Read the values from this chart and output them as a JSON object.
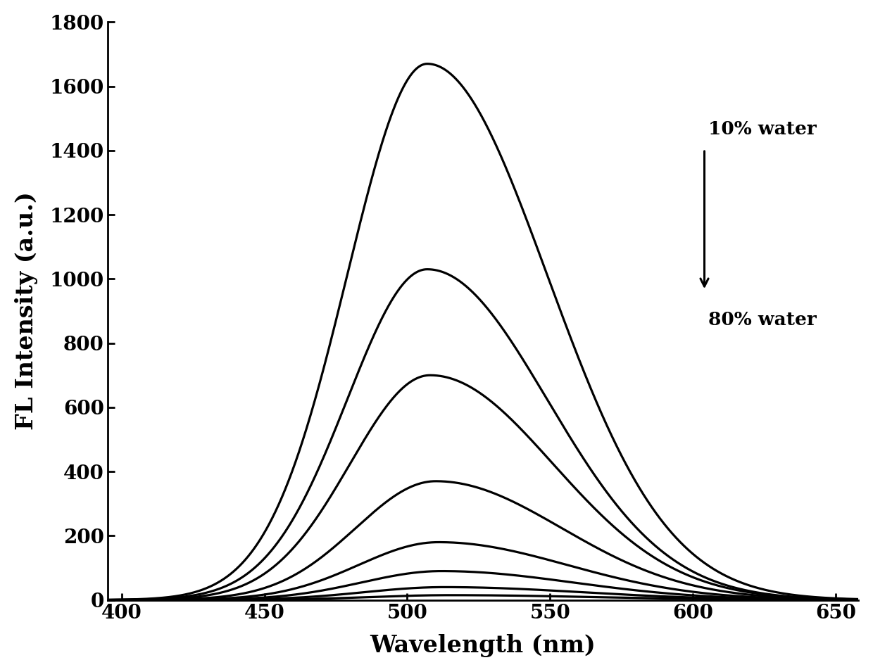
{
  "xlabel": "Wavelength (nm)",
  "ylabel": "FL Intensity (a.u.)",
  "xlim": [
    395,
    658
  ],
  "ylim": [
    0,
    1800
  ],
  "xticks": [
    400,
    450,
    500,
    550,
    600,
    650
  ],
  "yticks": [
    0,
    200,
    400,
    600,
    800,
    1000,
    1200,
    1400,
    1600,
    1800
  ],
  "x_start": 395,
  "x_end": 658,
  "peak_wavelengths": [
    507,
    507,
    508,
    510,
    511,
    512,
    513,
    515
  ],
  "peak_intensities": [
    1670,
    1030,
    700,
    370,
    180,
    90,
    40,
    15
  ],
  "sigma_left": [
    28,
    28,
    28,
    28,
    28,
    28,
    28,
    28
  ],
  "sigma_right": [
    42,
    42,
    43,
    44,
    45,
    46,
    48,
    50
  ],
  "water_label_top": "10% water",
  "water_label_bottom": "80% water",
  "line_color": "#000000",
  "background_color": "#ffffff",
  "xlabel_fontsize": 24,
  "ylabel_fontsize": 24,
  "tick_fontsize": 20,
  "annotation_fontsize": 19,
  "linewidth": 2.3
}
